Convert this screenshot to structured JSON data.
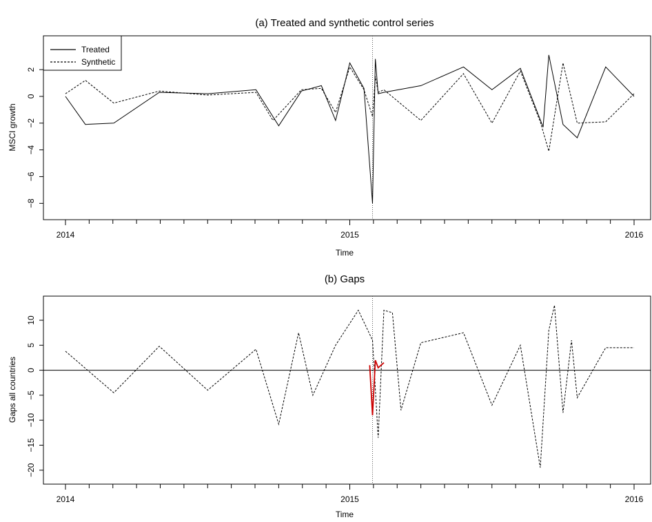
{
  "chart_data": [
    {
      "type": "line",
      "title": "(a) Treated and synthetic control series",
      "xlabel": "Time",
      "ylabel": "MSCI growth",
      "xlim": [
        2014,
        2016
      ],
      "ylim": [
        -8.5,
        3.5
      ],
      "x_ticks": [
        "2014",
        "2015",
        "2016"
      ],
      "y_ticks": [
        2,
        0,
        -2,
        -4,
        -6,
        -8
      ],
      "event_line_x": 2015.08,
      "legend": {
        "position": "top-left",
        "entries": [
          {
            "label": "Treated",
            "style": "solid"
          },
          {
            "label": "Synthetic",
            "style": "dashed"
          }
        ]
      },
      "series": [
        {
          "name": "Treated",
          "style": "solid",
          "color": "#000000",
          "x": [
            2014.0,
            2014.07,
            2014.17,
            2014.33,
            2014.5,
            2014.67,
            2014.75,
            2014.83,
            2014.9,
            2014.95,
            2015.0,
            2015.05,
            2015.08,
            2015.09,
            2015.1,
            2015.12,
            2015.25,
            2015.4,
            2015.5,
            2015.6,
            2015.68,
            2015.7,
            2015.75,
            2015.8,
            2015.9,
            2016.0
          ],
          "y": [
            0.0,
            -2.1,
            -2.0,
            0.3,
            0.2,
            0.5,
            -2.2,
            0.4,
            0.8,
            -1.8,
            2.5,
            0.6,
            -8.0,
            2.8,
            0.2,
            0.3,
            0.8,
            2.2,
            0.5,
            2.1,
            -2.3,
            3.1,
            -2.1,
            -3.1,
            2.2,
            0.0
          ]
        },
        {
          "name": "Synthetic",
          "style": "dashed",
          "color": "#000000",
          "x": [
            2014.0,
            2014.07,
            2014.17,
            2014.33,
            2014.5,
            2014.67,
            2014.73,
            2014.83,
            2014.9,
            2014.95,
            2015.0,
            2015.05,
            2015.08,
            2015.09,
            2015.1,
            2015.12,
            2015.25,
            2015.4,
            2015.5,
            2015.6,
            2015.67,
            2015.7,
            2015.75,
            2015.8,
            2015.9,
            2016.0
          ],
          "y": [
            0.2,
            1.2,
            -0.5,
            0.4,
            0.1,
            0.3,
            -1.8,
            0.5,
            0.6,
            -1.2,
            2.2,
            0.5,
            -1.5,
            1.5,
            0.3,
            0.5,
            -1.8,
            1.7,
            -2.0,
            1.9,
            -1.9,
            -4.1,
            2.5,
            -2.0,
            -1.9,
            0.2
          ]
        }
      ]
    },
    {
      "type": "line",
      "title": "(b) Gaps",
      "xlabel": "Time",
      "ylabel": "Gaps all countries",
      "xlim": [
        2014,
        2016
      ],
      "ylim": [
        -21,
        14
      ],
      "x_ticks": [
        "2014",
        "2015",
        "2016"
      ],
      "y_ticks": [
        10,
        5,
        0,
        -5,
        -10,
        -15,
        -20
      ],
      "event_line_x": 2015.08,
      "series": [
        {
          "name": "",
          "style": "dashed",
          "color": "#000000",
          "x": [
            2014.0,
            2014.17,
            2014.33,
            2014.5,
            2014.67,
            2014.75,
            2014.82,
            2014.87,
            2014.95,
            2015.03,
            2015.08,
            2015.1,
            2015.12,
            2015.15,
            2015.18,
            2015.25,
            2015.4,
            2015.5,
            2015.6,
            2015.67,
            2015.7,
            2015.72,
            2015.75,
            2015.78,
            2015.8,
            2015.9,
            2016.0
          ],
          "y": [
            3.8,
            -4.5,
            4.8,
            -4.0,
            4.2,
            -10.8,
            7.5,
            -5.0,
            5.0,
            12.0,
            6.0,
            -13.5,
            12.0,
            11.5,
            -8.0,
            5.5,
            7.5,
            -7.0,
            5.0,
            -19.5,
            8.0,
            13.0,
            -8.5,
            6.0,
            -5.5,
            4.5,
            4.5
          ]
        },
        {
          "name": "",
          "style": "solid",
          "color": "#cc0000",
          "x": [
            2015.07,
            2015.08,
            2015.09,
            2015.1,
            2015.12
          ],
          "y": [
            1.0,
            -9.0,
            2.0,
            0.5,
            1.5
          ]
        }
      ]
    }
  ]
}
